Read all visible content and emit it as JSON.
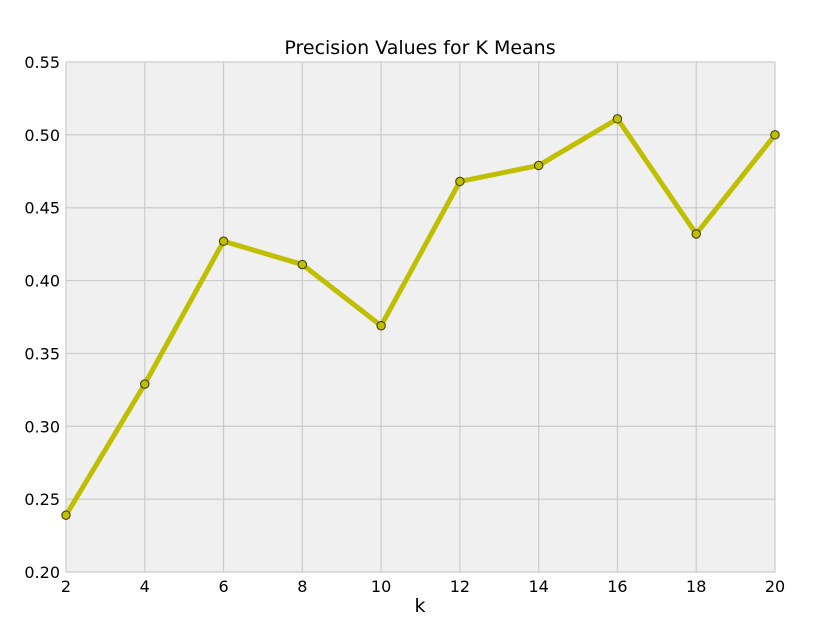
{
  "chart_data": {
    "type": "line",
    "title": "Precision Values for K Means",
    "xlabel": "k",
    "ylabel": "",
    "x": [
      2,
      4,
      6,
      8,
      10,
      12,
      14,
      16,
      18,
      20
    ],
    "series": [
      {
        "values": [
          0.239,
          0.329,
          0.427,
          0.411,
          0.369,
          0.468,
          0.479,
          0.511,
          0.432,
          0.5
        ]
      }
    ],
    "xlim": [
      2,
      20
    ],
    "ylim": [
      0.2,
      0.55
    ],
    "xticks": [
      2,
      4,
      6,
      8,
      10,
      12,
      14,
      16,
      18,
      20
    ],
    "yticks": [
      0.2,
      0.25,
      0.3,
      0.35,
      0.4,
      0.45,
      0.5,
      0.55
    ],
    "xtick_labels": [
      "2",
      "4",
      "6",
      "8",
      "10",
      "12",
      "14",
      "16",
      "18",
      "20"
    ],
    "ytick_labels": [
      "0.20",
      "0.25",
      "0.30",
      "0.35",
      "0.40",
      "0.45",
      "0.50",
      "0.55"
    ],
    "grid": true,
    "colors": {
      "line": "#bfbf00",
      "marker_edge": "#333300",
      "plot_background": "#f0f0f0",
      "grid": "#cbcbcb"
    }
  }
}
